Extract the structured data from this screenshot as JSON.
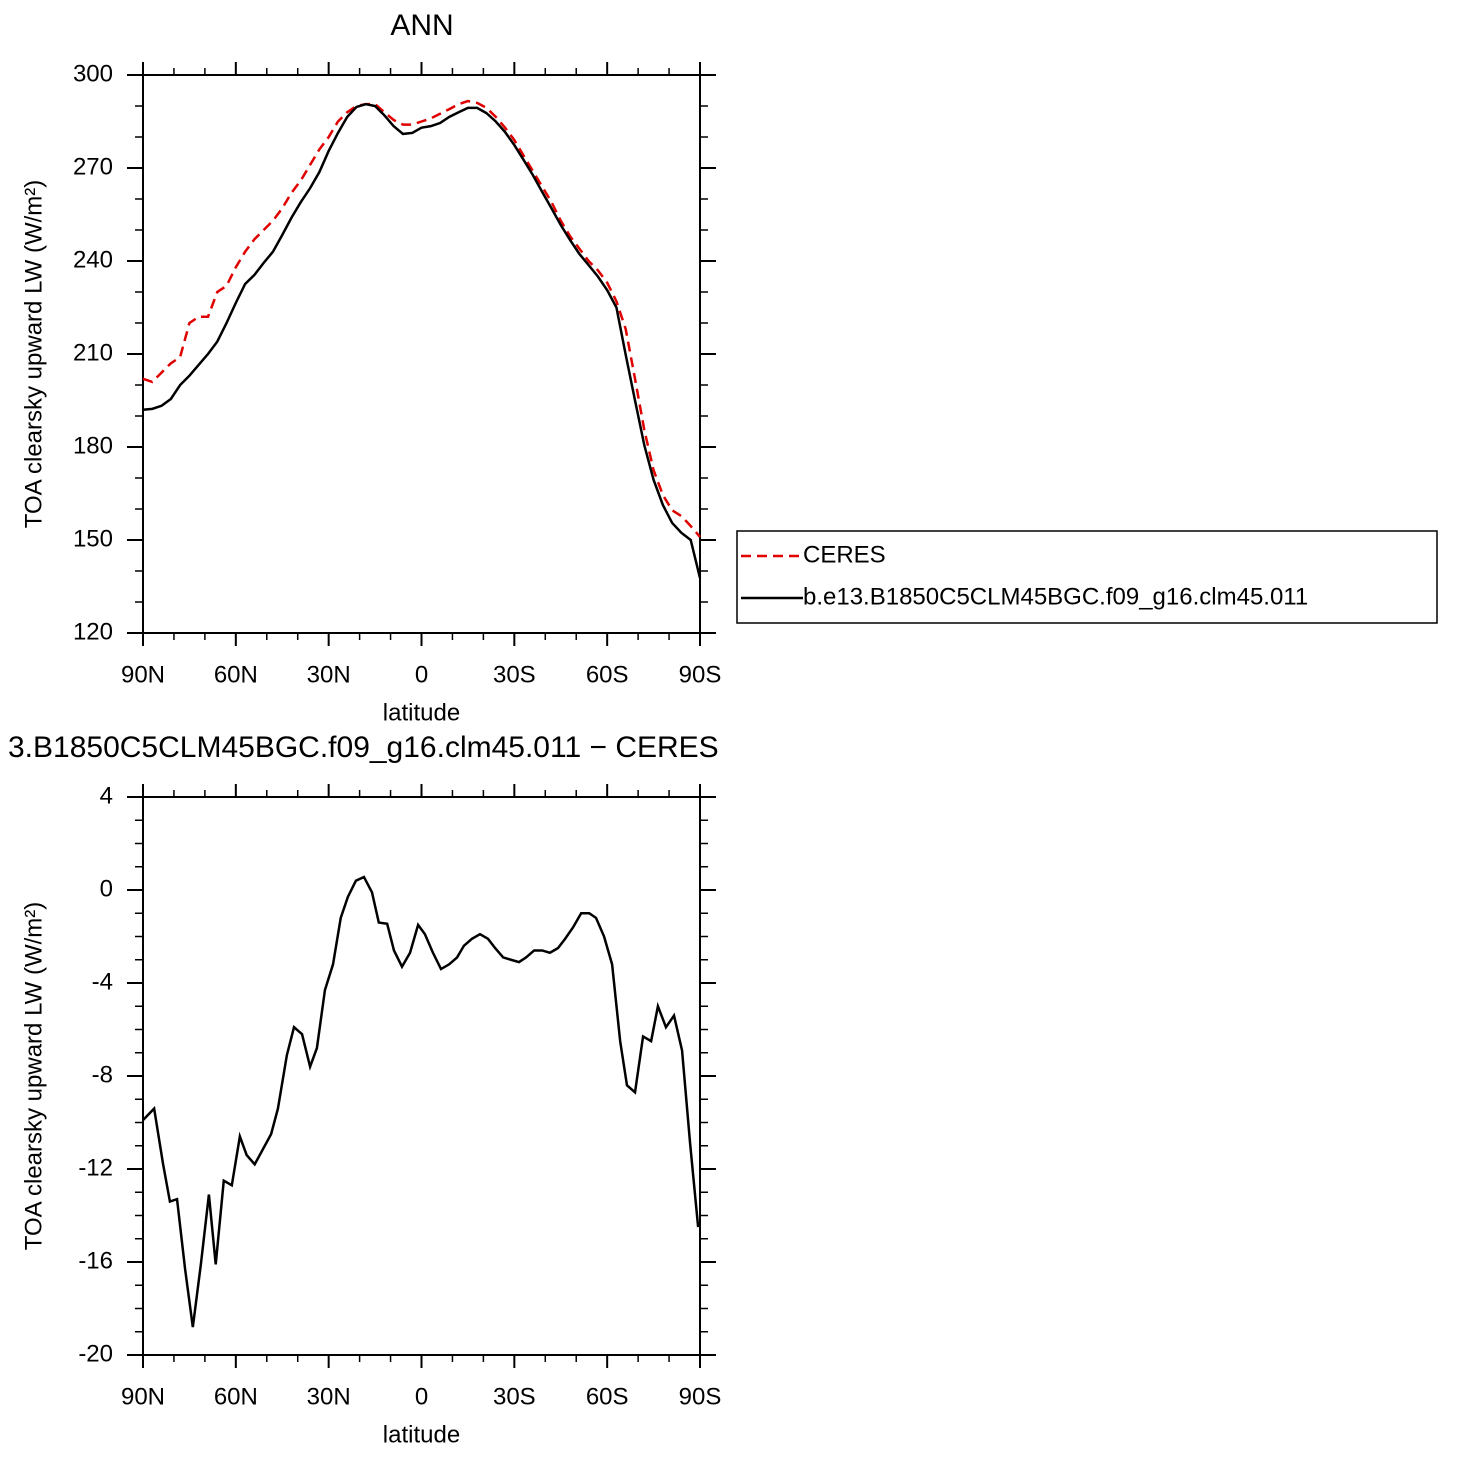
{
  "chart_data": [
    {
      "type": "line",
      "title": "ANN",
      "xlabel": "latitude",
      "ylabel": "TOA clearsky upward LW (W/m²)",
      "xlim": [
        90,
        -90
      ],
      "xticks": [
        {
          "value": 90,
          "label": "90N"
        },
        {
          "value": 60,
          "label": "60N"
        },
        {
          "value": 30,
          "label": "30N"
        },
        0,
        {
          "value": -30,
          "label": "30S"
        },
        {
          "value": -60,
          "label": "60S"
        },
        {
          "value": -90,
          "label": "90S"
        }
      ],
      "ylim": [
        120,
        300
      ],
      "yticks": [
        120,
        150,
        180,
        210,
        240,
        270,
        300
      ],
      "x": [
        90,
        87,
        84,
        81,
        78,
        75,
        72,
        69,
        66,
        63,
        60,
        57,
        54,
        51,
        48,
        45,
        42,
        39,
        36,
        33,
        30,
        27,
        24,
        21,
        18,
        15,
        12,
        9,
        6,
        3,
        0,
        -3,
        -6,
        -9,
        -12,
        -15,
        -18,
        -21,
        -24,
        -27,
        -30,
        -33,
        -36,
        -39,
        -42,
        -45,
        -48,
        -51,
        -54,
        -57,
        -60,
        -63,
        -66,
        -69,
        -72,
        -75,
        -78,
        -81,
        -84,
        -87,
        -90
      ],
      "series": [
        {
          "name": "CERES",
          "color": "#e00000",
          "linestyle": "dashed",
          "values": [
            202,
            201,
            204,
            207,
            209,
            220,
            222,
            222,
            230,
            232,
            238,
            243,
            247,
            250,
            253,
            257,
            262,
            266,
            271,
            276,
            280,
            285,
            288,
            290,
            290.6,
            290.6,
            288,
            285.5,
            284,
            284,
            285,
            286,
            287.5,
            289,
            290.6,
            291.6,
            291,
            289.4,
            286.5,
            283,
            279,
            274,
            269,
            264,
            259,
            253,
            248,
            244,
            240,
            237,
            233,
            227,
            218,
            202,
            185.5,
            172.5,
            164.5,
            159.6,
            157.7,
            154.5,
            151
          ]
        },
        {
          "name": "b.e13.B1850C5CLM45BGC.f09_g16.clm45.011",
          "color": "#000000",
          "linestyle": "solid",
          "values": [
            192,
            192.3,
            193.3,
            195.5,
            200,
            203,
            206.5,
            210,
            214,
            220,
            226.5,
            232.6,
            235.5,
            239.4,
            243,
            248.4,
            254,
            259,
            263.5,
            268.7,
            275.5,
            281.3,
            286.5,
            289.7,
            290.6,
            290,
            287,
            283.5,
            281,
            281.3,
            283,
            283.5,
            284.5,
            286.5,
            288,
            289.4,
            289.4,
            287.7,
            285,
            281.6,
            277.4,
            272.6,
            267.7,
            262.3,
            257,
            251.6,
            246.8,
            242.3,
            238.7,
            235,
            230.6,
            225,
            209.7,
            195,
            180.6,
            169.4,
            161.3,
            155.5,
            152.3,
            150,
            137.7
          ]
        }
      ]
    },
    {
      "type": "line",
      "title": "3.B1850C5CLM45BGC.f09_g16.clm45.011 − CERES",
      "xlabel": "latitude",
      "ylabel": "TOA clearsky upward LW (W/m²)",
      "xlim": [
        90,
        -90
      ],
      "xticks": [
        {
          "value": 90,
          "label": "90N"
        },
        {
          "value": 60,
          "label": "60N"
        },
        {
          "value": 30,
          "label": "30N"
        },
        0,
        {
          "value": -30,
          "label": "30S"
        },
        {
          "value": -60,
          "label": "60S"
        },
        {
          "value": -90,
          "label": "90S"
        }
      ],
      "ylim": [
        -20,
        4
      ],
      "yticks": [
        -20,
        -16,
        -12,
        -8,
        -4,
        0,
        4
      ],
      "x": [
        90,
        86.4,
        83.5,
        81.3,
        79,
        76.4,
        73.9,
        71.3,
        68.7,
        66.5,
        63.9,
        61.3,
        58.7,
        56.5,
        53.9,
        48.6,
        46.4,
        43.5,
        41.2,
        38.6,
        36,
        33.8,
        31.2,
        28.6,
        26.1,
        23.8,
        21.2,
        18.6,
        16,
        13.8,
        11.1,
        8.9,
        6.3,
        3.7,
        1.1,
        -1.1,
        -3.7,
        -6.3,
        -8.9,
        -11.5,
        -13.7,
        -16.3,
        -18.9,
        -21.5,
        -23.8,
        -26.4,
        -28.9,
        -31.5,
        -33.8,
        -36.4,
        -39,
        -41.5,
        -44.1,
        -46.4,
        -49,
        -51.6,
        -54.2,
        -56.4,
        -59,
        -61.6,
        -64.2,
        -66.4,
        -69,
        -71.6,
        -74.2,
        -76.4,
        -79,
        -81.6,
        -84.2,
        -86.8,
        -89.4
      ],
      "series": [
        {
          "color": "#000000",
          "linestyle": "solid",
          "values": [
            -9.9,
            -9.4,
            -11.8,
            -13.4,
            -13.3,
            -16.3,
            -18.8,
            -16.1,
            -13.1,
            -16.1,
            -12.5,
            -12.7,
            -10.6,
            -11.4,
            -11.8,
            -10.5,
            -9.4,
            -7.1,
            -5.9,
            -6.2,
            -7.6,
            -6.8,
            -4.3,
            -3.2,
            -1.2,
            -0.3,
            0.4,
            0.56,
            -0.1,
            -1.4,
            -1.45,
            -2.6,
            -3.3,
            -2.7,
            -1.5,
            -1.9,
            -2.7,
            -3.4,
            -3.2,
            -2.9,
            -2.4,
            -2.1,
            -1.9,
            -2.1,
            -2.5,
            -2.9,
            -3.0,
            -3.1,
            -2.9,
            -2.6,
            -2.6,
            -2.7,
            -2.5,
            -2.1,
            -1.6,
            -1.0,
            -1.0,
            -1.2,
            -2.0,
            -3.2,
            -6.5,
            -8.4,
            -8.7,
            -6.3,
            -6.5,
            -5.0,
            -5.9,
            -5.4,
            -6.9,
            -10.9,
            -14.5
          ]
        }
      ]
    }
  ]
}
